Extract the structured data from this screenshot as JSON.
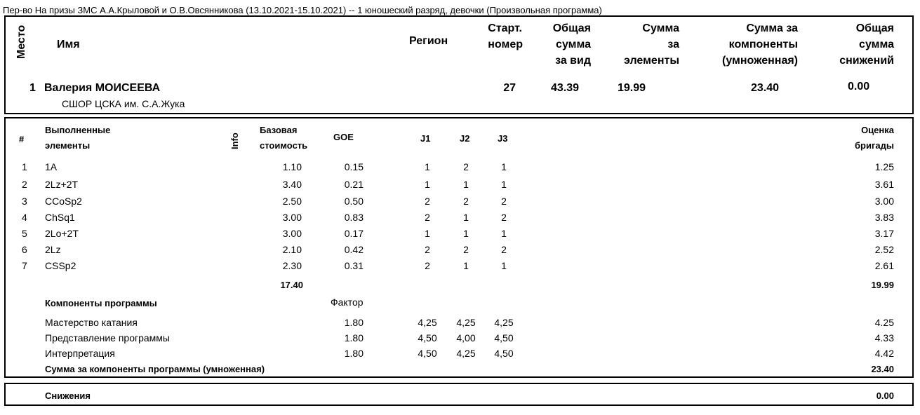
{
  "header_line": "Пер-во На призы ЗМС А.А.Крыловой и О.В.Овсянникова (13.10.2021-15.10.2021)  --  1 юношеский разряд, девочки  (Произвольная программа)",
  "summary": {
    "headers": {
      "place": "Место",
      "name": "Имя",
      "region": "Регион",
      "start_l1": "Старт.",
      "start_l2": "номер",
      "total_l1": "Общая",
      "total_l2": "сумма",
      "total_l3": "за вид",
      "elem_l1": "Сумма",
      "elem_l2": "за",
      "elem_l3": "элементы",
      "comp_l1": "Сумма за",
      "comp_l2": "компоненты",
      "comp_l3": "(умноженная)",
      "ded_l1": "Общая",
      "ded_l2": "сумма",
      "ded_l3": "снижений"
    },
    "place": "1",
    "name": "Валерия МОИСЕЕВА",
    "club": "СШОР ЦСКА им. С.А.Жука",
    "start_number": "27",
    "total": "43.39",
    "elements_score": "19.99",
    "components_score": "23.40",
    "deductions": "0.00"
  },
  "elements": {
    "headers": {
      "num": "#",
      "name_l1": "Выполненные",
      "name_l2": "элементы",
      "info": "Info",
      "base_l1": "Базовая",
      "base_l2": "стоимость",
      "goe": "GOE",
      "j1": "J1",
      "j2": "J2",
      "j3": "J3",
      "panel_l1": "Оценка",
      "panel_l2": "бригады"
    },
    "rows": [
      {
        "num": "1",
        "name": "1A",
        "base": "1.10",
        "goe": "0.15",
        "j1": "1",
        "j2": "2",
        "j3": "1",
        "score": "1.25"
      },
      {
        "num": "2",
        "name": "2Lz+2T",
        "base": "3.40",
        "goe": "0.21",
        "j1": "1",
        "j2": "1",
        "j3": "1",
        "score": "3.61"
      },
      {
        "num": "3",
        "name": "CCoSp2",
        "base": "2.50",
        "goe": "0.50",
        "j1": "2",
        "j2": "2",
        "j3": "2",
        "score": "3.00"
      },
      {
        "num": "4",
        "name": "ChSq1",
        "base": "3.00",
        "goe": "0.83",
        "j1": "2",
        "j2": "1",
        "j3": "2",
        "score": "3.83"
      },
      {
        "num": "5",
        "name": "2Lo+2T",
        "base": "3.00",
        "goe": "0.17",
        "j1": "1",
        "j2": "1",
        "j3": "1",
        "score": "3.17"
      },
      {
        "num": "6",
        "name": "2Lz",
        "base": "2.10",
        "goe": "0.42",
        "j1": "2",
        "j2": "2",
        "j3": "2",
        "score": "2.52"
      },
      {
        "num": "7",
        "name": "CSSp2",
        "base": "2.30",
        "goe": "0.31",
        "j1": "2",
        "j2": "1",
        "j3": "1",
        "score": "2.61"
      }
    ],
    "base_total": "17.40",
    "score_total": "19.99"
  },
  "components": {
    "title": "Компоненты программы",
    "factor_label": "Фактор",
    "rows": [
      {
        "name": "Мастерство катания",
        "factor": "1.80",
        "j1": "4,25",
        "j2": "4,25",
        "j3": "4,25",
        "score": "4.25"
      },
      {
        "name": "Представление программы",
        "factor": "1.80",
        "j1": "4,50",
        "j2": "4,00",
        "j3": "4,50",
        "score": "4.33"
      },
      {
        "name": "Интерпретация",
        "factor": "1.80",
        "j1": "4,50",
        "j2": "4,25",
        "j3": "4,50",
        "score": "4.42"
      }
    ],
    "total_label": "Сумма за компоненты программы (умноженная)",
    "total": "23.40"
  },
  "deductions": {
    "label": "Снижения",
    "value": "0.00"
  }
}
